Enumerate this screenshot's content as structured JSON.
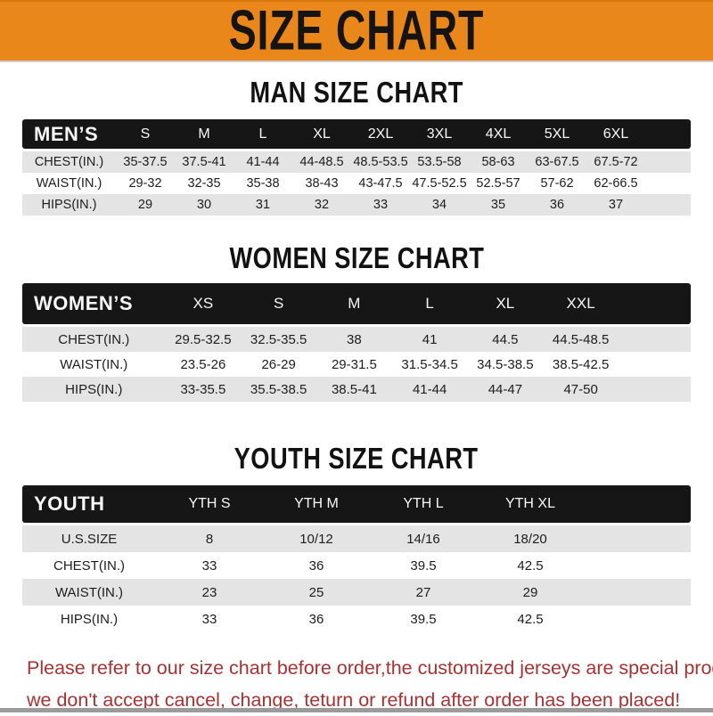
{
  "colors": {
    "banner_bg": "#E9871B",
    "header_bar_bg": "#161616",
    "row_alt_bg": "#E4E4E4",
    "notice_text": "#A93132"
  },
  "banner": {
    "title": "SIZE CHART"
  },
  "chart_data": [
    {
      "type": "table",
      "title": "MAN SIZE CHART",
      "corner_label": "MEN’S",
      "columns": [
        "S",
        "M",
        "L",
        "XL",
        "2XL",
        "3XL",
        "4XL",
        "5XL",
        "6XL"
      ],
      "rows": [
        {
          "label": "CHEST(IN.)",
          "values": [
            "35-37.5",
            "37.5-41",
            "41-44",
            "44-48.5",
            "48.5-53.5",
            "53.5-58",
            "58-63",
            "63-67.5",
            "67.5-72"
          ]
        },
        {
          "label": "WAIST(IN.)",
          "values": [
            "29-32",
            "32-35",
            "35-38",
            "38-43",
            "43-47.5",
            "47.5-52.5",
            "52.5-57",
            "57-62",
            "62-66.5"
          ]
        },
        {
          "label": "HIPS(IN.)",
          "values": [
            "29",
            "30",
            "31",
            "32",
            "33",
            "34",
            "35",
            "36",
            "37"
          ]
        }
      ]
    },
    {
      "type": "table",
      "title": "WOMEN SIZE CHART",
      "corner_label": "WOMEN’S",
      "columns": [
        "XS",
        "S",
        "M",
        "L",
        "XL",
        "XXL"
      ],
      "rows": [
        {
          "label": "CHEST(IN.)",
          "values": [
            "29.5-32.5",
            "32.5-35.5",
            "38",
            "41",
            "44.5",
            "44.5-48.5"
          ]
        },
        {
          "label": "WAIST(IN.)",
          "values": [
            "23.5-26",
            "26-29",
            "29-31.5",
            "31.5-34.5",
            "34.5-38.5",
            "38.5-42.5"
          ]
        },
        {
          "label": "HIPS(IN.)",
          "values": [
            "33-35.5",
            "35.5-38.5",
            "38.5-41",
            "41-44",
            "44-47",
            "47-50"
          ]
        }
      ]
    },
    {
      "type": "table",
      "title": "YOUTH SIZE CHART",
      "corner_label": "YOUTH",
      "columns": [
        "YTH S",
        "YTH M",
        "YTH L",
        "YTH XL"
      ],
      "rows": [
        {
          "label": "U.S.SIZE",
          "values": [
            "8",
            "10/12",
            "14/16",
            "18/20"
          ]
        },
        {
          "label": "CHEST(IN.)",
          "values": [
            "33",
            "36",
            "39.5",
            "42.5"
          ]
        },
        {
          "label": "WAIST(IN.)",
          "values": [
            "23",
            "25",
            "27",
            "29"
          ]
        },
        {
          "label": "HIPS(IN.)",
          "values": [
            "33",
            "36",
            "39.5",
            "42.5"
          ]
        }
      ]
    }
  ],
  "footer": {
    "line1": "Please refer to our size chart before order,the customized jerseys are special products,",
    "line2": "we don't accept cancel, change, teturn or refund after order has been placed!"
  }
}
